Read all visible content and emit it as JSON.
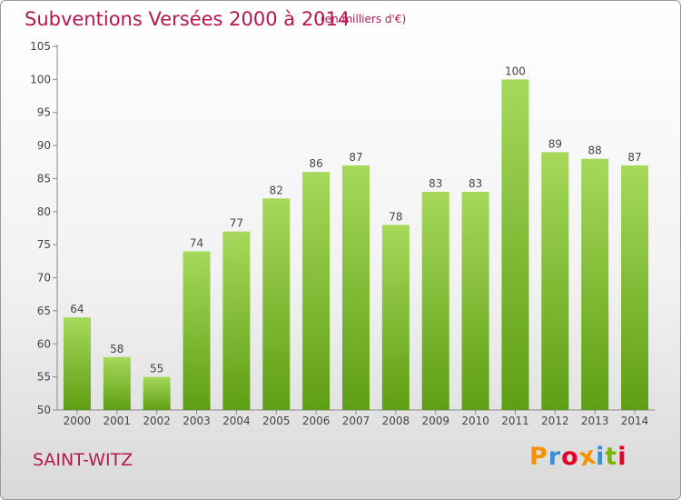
{
  "chart_data": {
    "type": "bar",
    "title": "Subventions Versées 2000 à 2014",
    "subtitle": "(en milliers d'€)",
    "categories": [
      "2000",
      "2001",
      "2002",
      "2003",
      "2004",
      "2005",
      "2006",
      "2007",
      "2008",
      "2009",
      "2010",
      "2011",
      "2012",
      "2013",
      "2014"
    ],
    "values": [
      64,
      58,
      55,
      74,
      77,
      82,
      86,
      87,
      78,
      83,
      83,
      100,
      89,
      88,
      87
    ],
    "ylim": [
      50,
      105
    ],
    "yticks": [
      50,
      55,
      60,
      65,
      70,
      75,
      80,
      85,
      90,
      95,
      100,
      105
    ],
    "grid": false,
    "bar_color": "#7fbf2e",
    "bar_color_light": "#a6d95a"
  },
  "footer": {
    "commune": "SAINT-WITZ",
    "logo": "Proxiti",
    "logo_colors": [
      "#f39200",
      "#3a8fd6",
      "#e4002b",
      "#f39200",
      "#3a8fd6",
      "#7ab800",
      "#e4002b"
    ]
  },
  "colors": {
    "accent": "#b5174f"
  }
}
